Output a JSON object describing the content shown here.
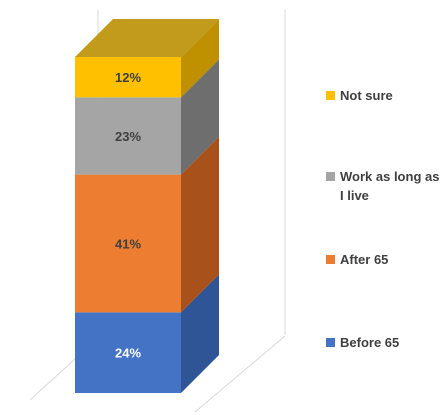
{
  "chart_data": {
    "type": "bar",
    "subtype": "stacked-3d-column",
    "categories": [
      ""
    ],
    "series": [
      {
        "name": "Before 65",
        "values": [
          24
        ],
        "label": "24%",
        "color": "#4472C4",
        "side_color": "#2F5597",
        "top_color": "#5B86D1",
        "label_color": "#ffffff"
      },
      {
        "name": "After 65",
        "values": [
          41
        ],
        "label": "41%",
        "color": "#ED7D31",
        "side_color": "#A9511A",
        "top_color": "#F0904F",
        "label_color": "#404040"
      },
      {
        "name": "Work as long as I live",
        "values": [
          23
        ],
        "label": "23%",
        "color": "#A5A5A5",
        "side_color": "#6E6E6E",
        "top_color": "#B5B5B5",
        "label_color": "#404040"
      },
      {
        "name": "Not sure",
        "values": [
          12
        ],
        "label": "12%",
        "color": "#FFC000",
        "side_color": "#BF9000",
        "top_color": "#C29A1C",
        "label_color": "#404040"
      }
    ],
    "ylim": [
      0,
      100
    ],
    "legend_position": "right",
    "grid": false
  },
  "legend": {
    "items": [
      {
        "label": "Not sure",
        "color": "#FFC000"
      },
      {
        "label": "Work as long as I live",
        "color": "#A5A5A5"
      },
      {
        "label": "After 65",
        "color": "#ED7D31"
      },
      {
        "label": "Before 65",
        "color": "#4472C4"
      }
    ]
  }
}
